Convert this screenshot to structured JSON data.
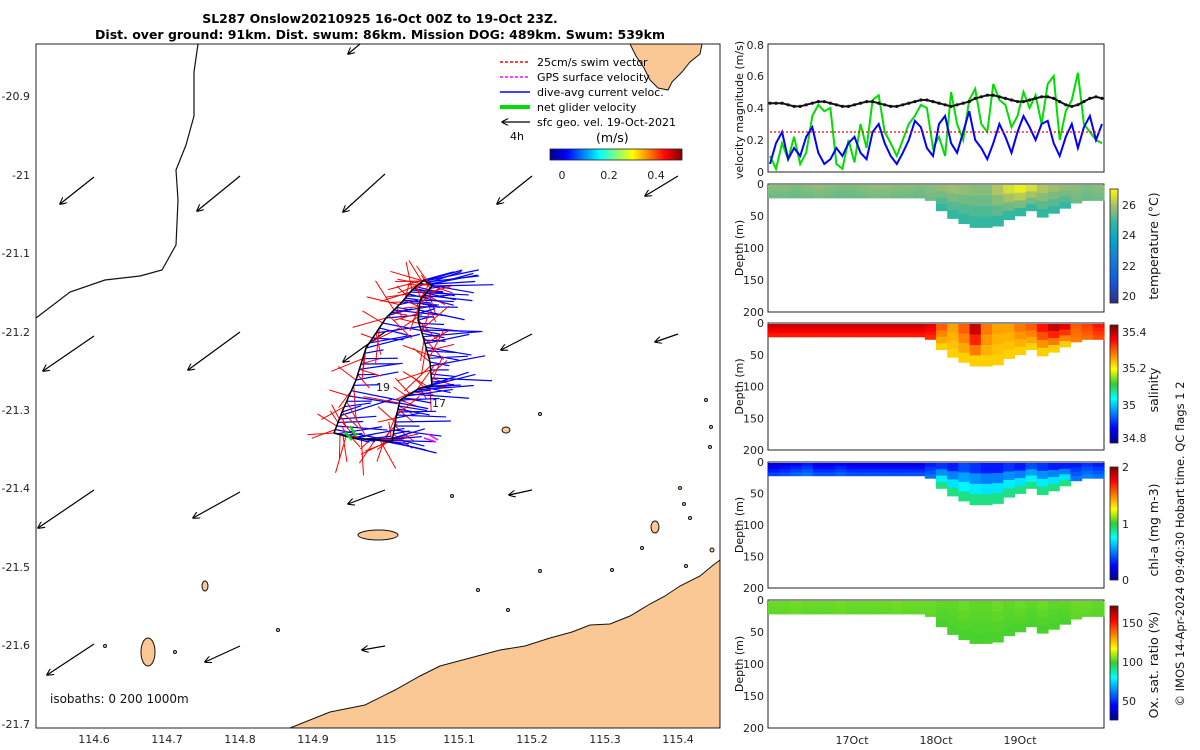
{
  "header": {
    "title_line1": "SL287 Onslow20210925 16-Oct 00Z to 19-Oct 23Z.",
    "title_line2": "Dist. over ground: 91km. Dist. swum: 86km. Mission DOG: 489km. Swum: 539km"
  },
  "map": {
    "x_ticks": [
      "114.6",
      "114.7",
      "114.8",
      "114.9",
      "115",
      "115.1",
      "115.2",
      "115.3",
      "115.4"
    ],
    "y_ticks": [
      "-20.9",
      "-21",
      "-21.1",
      "-21.2",
      "-21.3",
      "-21.4",
      "-21.5",
      "-21.6",
      "-21.7"
    ],
    "legend": {
      "items": [
        "25cm/s swim vector",
        "GPS surface velocity",
        "dive-avg current veloc.",
        "net glider velocity",
        "sfc geo. vel. 19-Oct-2021"
      ],
      "interval": "4h",
      "cbar_label": "(m/s)",
      "cbar_ticks": [
        "0",
        "0.2",
        "0.4"
      ]
    },
    "annot_19": "19",
    "annot_17": "17",
    "isobaths": "isobaths: 0   200  1000m",
    "colors": {
      "land": "#f9c894",
      "swim": "#ff0000",
      "current": "#0000ff",
      "net": "#00cc00",
      "gps": "#ff00ff"
    }
  },
  "chart_data": [
    {
      "type": "line",
      "ylabel": "velocity magnitude (m/s)",
      "ylim": [
        0,
        0.8
      ],
      "yticks": [
        "0",
        "0.2",
        "0.4",
        "0.6",
        "0.8"
      ],
      "series": [
        {
          "name": "net glider velocity",
          "color": "#00dd00",
          "values": [
            0.1,
            0.02,
            0.18,
            0.08,
            0.22,
            0.05,
            0.12,
            0.35,
            0.42,
            0.38,
            0.4,
            0.05,
            0.02,
            0.2,
            0.06,
            0.3,
            0.15,
            0.45,
            0.48,
            0.25,
            0.18,
            0.1,
            0.2,
            0.3,
            0.35,
            0.42,
            0.4,
            0.15,
            0.22,
            0.1,
            0.5,
            0.3,
            0.2,
            0.45,
            0.52,
            0.3,
            0.25,
            0.55,
            0.45,
            0.42,
            0.28,
            0.35,
            0.5,
            0.4,
            0.48,
            0.3,
            0.55,
            0.6,
            0.2,
            0.38,
            0.45,
            0.62,
            0.3,
            0.25,
            0.2,
            0.18
          ]
        },
        {
          "name": "dive-avg current",
          "color": "#0000ff",
          "values": [
            0.05,
            0.18,
            0.25,
            0.08,
            0.15,
            0.1,
            0.22,
            0.28,
            0.12,
            0.05,
            0.08,
            0.15,
            0.1,
            0.18,
            0.22,
            0.12,
            0.08,
            0.25,
            0.3,
            0.18,
            0.1,
            0.05,
            0.12,
            0.2,
            0.32,
            0.28,
            0.15,
            0.1,
            0.3,
            0.35,
            0.18,
            0.12,
            0.25,
            0.38,
            0.2,
            0.15,
            0.08,
            0.18,
            0.3,
            0.22,
            0.12,
            0.25,
            0.35,
            0.28,
            0.2,
            0.3,
            0.32,
            0.18,
            0.1,
            0.22,
            0.3,
            0.15,
            0.28,
            0.35,
            0.2,
            0.3
          ]
        },
        {
          "name": "swim speed",
          "color": "#ff0000",
          "values": [
            0.25,
            0.25,
            0.25,
            0.25,
            0.25,
            0.25,
            0.25,
            0.25,
            0.25,
            0.25,
            0.25,
            0.25,
            0.25,
            0.25,
            0.25,
            0.25,
            0.25,
            0.25,
            0.25,
            0.25,
            0.25,
            0.25,
            0.25,
            0.25,
            0.25,
            0.25,
            0.25,
            0.25,
            0.25,
            0.25,
            0.25,
            0.25,
            0.25,
            0.25,
            0.25,
            0.25,
            0.25,
            0.25,
            0.25,
            0.25,
            0.25,
            0.25,
            0.25,
            0.25,
            0.25,
            0.25,
            0.25,
            0.25,
            0.25,
            0.25,
            0.25,
            0.25,
            0.25,
            0.25,
            0.25,
            0.25
          ]
        },
        {
          "name": "sfc geo. vel.",
          "color": "#111111",
          "values": [
            0.43,
            0.43,
            0.43,
            0.42,
            0.41,
            0.41,
            0.42,
            0.43,
            0.44,
            0.44,
            0.43,
            0.42,
            0.41,
            0.41,
            0.42,
            0.43,
            0.44,
            0.44,
            0.43,
            0.42,
            0.41,
            0.41,
            0.42,
            0.43,
            0.44,
            0.45,
            0.45,
            0.44,
            0.43,
            0.42,
            0.41,
            0.42,
            0.43,
            0.44,
            0.46,
            0.47,
            0.48,
            0.48,
            0.47,
            0.46,
            0.45,
            0.44,
            0.44,
            0.45,
            0.46,
            0.47,
            0.47,
            0.46,
            0.44,
            0.42,
            0.41,
            0.42,
            0.44,
            0.46,
            0.47,
            0.46
          ]
        }
      ]
    },
    {
      "type": "heatmap",
      "variable": "temperature",
      "ylabel": "Depth (m)",
      "cbar_label": "temperature (°C)",
      "cbar_ticks": [
        "20",
        "22",
        "24",
        "26"
      ],
      "clim": [
        19.5,
        27
      ],
      "surface_values": [
        25.6,
        25.6,
        25.5,
        25.6,
        25.7,
        25.6,
        25.5,
        25.5,
        25.6,
        25.7,
        25.7,
        25.6,
        25.6,
        25.5,
        25.6,
        25.7,
        25.8,
        25.7,
        25.6,
        25.6,
        26.0,
        26.5,
        26.8,
        26.5,
        26.0,
        25.8,
        25.7,
        25.6,
        25.5,
        25.6
      ],
      "deep_value": 24.8
    },
    {
      "type": "heatmap",
      "variable": "salinity",
      "ylabel": "Depth (m)",
      "cbar_label": "salinity",
      "cbar_ticks": [
        "34.8",
        "35",
        "35.2",
        "35.4"
      ],
      "clim": [
        34.75,
        35.45
      ],
      "surface_values": [
        35.4,
        35.4,
        35.4,
        35.4,
        35.4,
        35.4,
        35.4,
        35.4,
        35.4,
        35.4,
        35.4,
        35.4,
        35.4,
        35.4,
        35.38,
        35.3,
        35.25,
        35.3,
        35.4,
        35.28,
        35.25,
        35.25,
        35.28,
        35.3,
        35.35,
        35.4,
        35.38,
        35.3,
        35.32,
        35.35
      ],
      "deep_value": 35.22
    },
    {
      "type": "heatmap",
      "variable": "chl-a",
      "ylabel": "Depth (m)",
      "cbar_label": "chl-a (mg m-3)",
      "cbar_ticks": [
        "0",
        "1",
        "2"
      ],
      "clim": [
        0,
        2
      ],
      "surface_values": [
        0.15,
        0.2,
        0.25,
        0.3,
        0.2,
        0.2,
        0.25,
        0.2,
        0.2,
        0.2,
        0.2,
        0.2,
        0.2,
        0.2,
        0.3,
        0.35,
        0.3,
        0.4,
        0.35,
        0.3,
        0.3,
        0.35,
        0.3,
        0.4,
        0.35,
        0.3,
        0.3,
        0.3,
        0.35,
        0.3
      ],
      "deep_value": 0.9
    },
    {
      "type": "heatmap",
      "variable": "oxygen saturation",
      "ylabel": "Depth (m)",
      "cbar_label": "Ox. sat. ratio (%)",
      "cbar_ticks": [
        "50",
        "100",
        "150"
      ],
      "clim": [
        25,
        175
      ],
      "surface_values": [
        105,
        105,
        106,
        105,
        105,
        105,
        106,
        105,
        105,
        105,
        105,
        106,
        105,
        105,
        105,
        104,
        104,
        105,
        104,
        104,
        105,
        104,
        105,
        104,
        105,
        104,
        104,
        105,
        105,
        104
      ],
      "deep_value": 102
    }
  ],
  "ts_axes": {
    "depth_ticks": [
      "0",
      "50",
      "100",
      "150",
      "200"
    ],
    "time_ticks": [
      "17Oct",
      "18Oct",
      "19Oct"
    ]
  },
  "footer": {
    "credit": "© IMOS 14-Apr-2024 09:40:30 Hobart time. QC flags 1  2"
  }
}
